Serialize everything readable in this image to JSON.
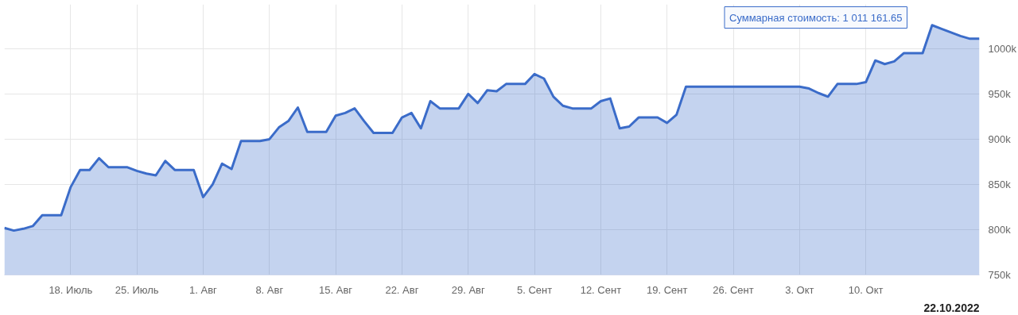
{
  "chart_data": {
    "type": "area",
    "x": [
      "2022-07-11",
      "2022-07-12",
      "2022-07-13",
      "2022-07-14",
      "2022-07-15",
      "2022-07-16",
      "2022-07-17",
      "2022-07-18",
      "2022-07-19",
      "2022-07-20",
      "2022-07-21",
      "2022-07-22",
      "2022-07-23",
      "2022-07-24",
      "2022-07-25",
      "2022-07-26",
      "2022-07-27",
      "2022-07-28",
      "2022-07-29",
      "2022-07-30",
      "2022-07-31",
      "2022-08-01",
      "2022-08-02",
      "2022-08-03",
      "2022-08-04",
      "2022-08-05",
      "2022-08-06",
      "2022-08-07",
      "2022-08-08",
      "2022-08-09",
      "2022-08-10",
      "2022-08-11",
      "2022-08-12",
      "2022-08-13",
      "2022-08-14",
      "2022-08-15",
      "2022-08-16",
      "2022-08-17",
      "2022-08-18",
      "2022-08-19",
      "2022-08-20",
      "2022-08-21",
      "2022-08-22",
      "2022-08-23",
      "2022-08-24",
      "2022-08-25",
      "2022-08-26",
      "2022-08-27",
      "2022-08-28",
      "2022-08-29",
      "2022-08-30",
      "2022-08-31",
      "2022-09-01",
      "2022-09-02",
      "2022-09-03",
      "2022-09-04",
      "2022-09-05",
      "2022-09-06",
      "2022-09-07",
      "2022-09-08",
      "2022-09-09",
      "2022-09-10",
      "2022-09-11",
      "2022-09-12",
      "2022-09-13",
      "2022-09-14",
      "2022-09-15",
      "2022-09-16",
      "2022-09-17",
      "2022-09-18",
      "2022-09-19",
      "2022-09-20",
      "2022-09-21",
      "2022-09-22",
      "2022-09-23",
      "2022-09-24",
      "2022-09-25",
      "2022-09-26",
      "2022-09-27",
      "2022-09-28",
      "2022-09-29",
      "2022-09-30",
      "2022-10-01",
      "2022-10-02",
      "2022-10-03",
      "2022-10-04",
      "2022-10-05",
      "2022-10-06",
      "2022-10-07",
      "2022-10-08",
      "2022-10-09",
      "2022-10-10",
      "2022-10-11",
      "2022-10-12",
      "2022-10-13",
      "2022-10-14",
      "2022-10-15",
      "2022-10-16",
      "2022-10-17",
      "2022-10-18",
      "2022-10-19",
      "2022-10-20",
      "2022-10-21",
      "2022-10-22"
    ],
    "series": [
      {
        "color": "#3b6cc9",
        "values": [
          802000,
          799000,
          801000,
          804000,
          816000,
          816000,
          816000,
          847000,
          866000,
          866000,
          879000,
          869000,
          869000,
          869000,
          865000,
          862000,
          860000,
          876000,
          866000,
          866000,
          866000,
          836000,
          850000,
          873000,
          867000,
          898000,
          898000,
          898000,
          900000,
          913000,
          920000,
          935000,
          908000,
          908000,
          908000,
          926000,
          929000,
          934000,
          920000,
          907000,
          907000,
          907000,
          924000,
          929000,
          912000,
          942000,
          934000,
          934000,
          934000,
          950000,
          940000,
          954000,
          953000,
          961000,
          961000,
          961000,
          972000,
          967000,
          947000,
          937000,
          934000,
          934000,
          934000,
          942000,
          945000,
          912000,
          914000,
          924000,
          924000,
          924000,
          918000,
          927000,
          958000,
          958000,
          958000,
          958000,
          958000,
          958000,
          958000,
          958000,
          958000,
          958000,
          958000,
          958000,
          958000,
          956000,
          951000,
          947000,
          961000,
          961000,
          961000,
          963000,
          987000,
          983000,
          986000,
          995000,
          995000,
          995000,
          1026000,
          1022000,
          1018000,
          1014000,
          1011000,
          1011000
        ]
      }
    ],
    "xlim": [
      "2022-07-11",
      "2022-10-22"
    ],
    "ylim": [
      750000,
      1049000
    ],
    "xticks": [
      {
        "value": "2022-07-18",
        "label": "18. Июль"
      },
      {
        "value": "2022-07-25",
        "label": "25. Июль"
      },
      {
        "value": "2022-08-01",
        "label": "1. Авг"
      },
      {
        "value": "2022-08-08",
        "label": "8. Авг"
      },
      {
        "value": "2022-08-15",
        "label": "15. Авг"
      },
      {
        "value": "2022-08-22",
        "label": "22. Авг"
      },
      {
        "value": "2022-08-29",
        "label": "29. Авг"
      },
      {
        "value": "2022-09-05",
        "label": "5. Сент"
      },
      {
        "value": "2022-09-12",
        "label": "12. Сент"
      },
      {
        "value": "2022-09-19",
        "label": "19. Сент"
      },
      {
        "value": "2022-09-26",
        "label": "26. Сент"
      },
      {
        "value": "2022-10-03",
        "label": "3. Окт"
      },
      {
        "value": "2022-10-10",
        "label": "10. Окт"
      }
    ],
    "yticks": [
      {
        "value": 750000,
        "label": "750k"
      },
      {
        "value": 800000,
        "label": "800k"
      },
      {
        "value": 850000,
        "label": "850k"
      },
      {
        "value": 900000,
        "label": "900k"
      },
      {
        "value": 950000,
        "label": "950k"
      },
      {
        "value": 1000000,
        "label": "1000k"
      }
    ],
    "grid": true,
    "annotations": [
      "Суммарная стоимость: 1 011 161.65",
      "22.10.2022"
    ]
  }
}
